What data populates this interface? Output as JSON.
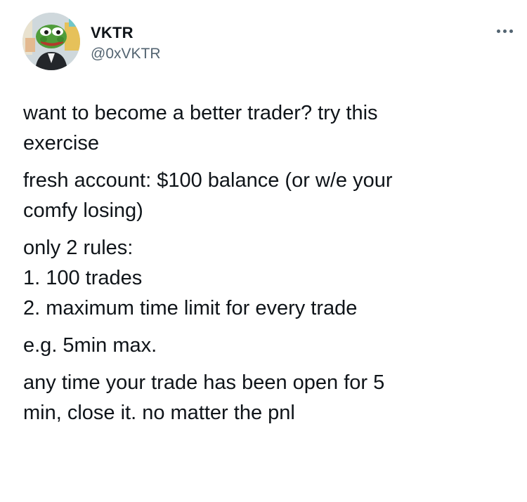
{
  "author": {
    "display_name": "VKTR",
    "handle": "@0xVKTR"
  },
  "icons": {
    "more": "more-horizontal-icon",
    "avatar": "frog-avatar-icon"
  },
  "colors": {
    "text_primary": "#0f1419",
    "text_secondary": "#536471",
    "background": "#ffffff"
  },
  "tweet": {
    "paragraphs": [
      [
        "want to become a better trader? try this",
        "exercise"
      ],
      [
        "fresh account: $100 balance (or w/e your",
        "comfy losing)"
      ],
      [
        "only 2 rules:",
        "1. 100 trades",
        "2. maximum time limit for every trade"
      ],
      [
        "e.g. 5min max."
      ],
      [
        "any time your trade has been open for 5",
        "min, close it. no matter the pnl"
      ]
    ]
  }
}
